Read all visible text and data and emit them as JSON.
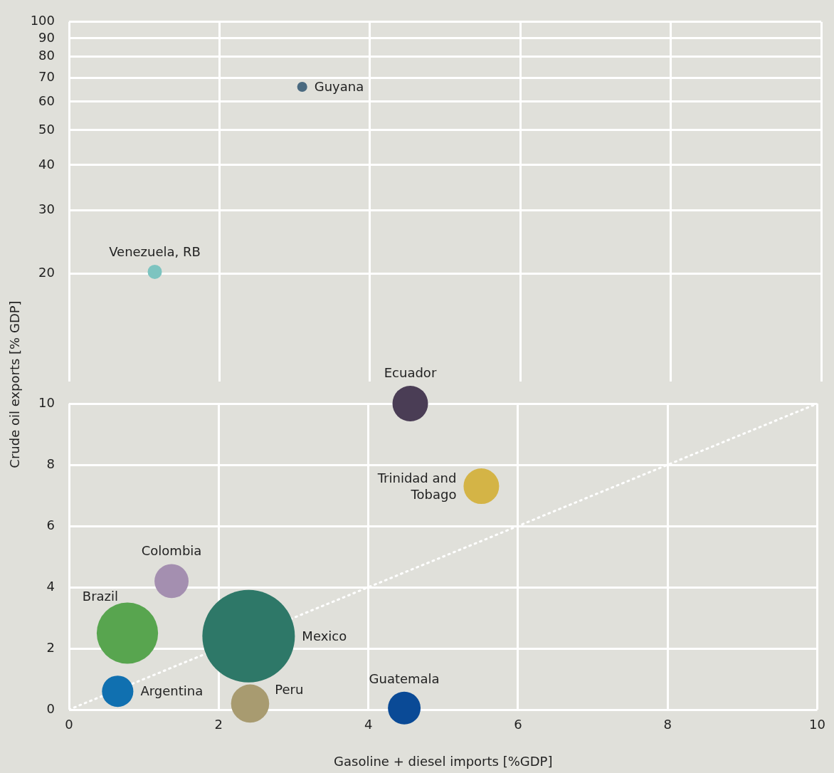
{
  "chart_data": [
    {
      "type": "bubble",
      "xlim": [
        0,
        10
      ],
      "xticks": [
        0,
        2,
        4,
        6,
        8,
        10
      ],
      "ylim": [
        10,
        100
      ],
      "yticks": [
        20,
        30,
        40,
        50,
        60,
        70,
        80,
        90,
        100
      ],
      "log": "y",
      "grid": true,
      "tick_labels": "y",
      "legend": false,
      "series": [
        {
          "name": "Guyana",
          "color": "#4a6a80",
          "x": [
            3.1
          ],
          "values": [
            66
          ],
          "sizes": [
            0.5
          ]
        },
        {
          "name": "Venezuela, RB",
          "color": "#7dc4c0",
          "x": [
            1.14
          ],
          "values": [
            20.2
          ],
          "sizes": [
            1
          ]
        }
      ]
    },
    {
      "type": "bubble",
      "xlabel": "Gasoline + diesel imports [%GDP]",
      "ylabel": "Crude oil exports [% GDP]",
      "xlim": [
        0,
        10
      ],
      "xticks": [
        0,
        2,
        4,
        6,
        8,
        10
      ],
      "ylim": [
        0,
        10
      ],
      "yticks": [
        0,
        2,
        4,
        6,
        8,
        10
      ],
      "grid": true,
      "legend": false,
      "series": [
        {
          "name": "Ecuador",
          "color": "#4a3d55",
          "x": [
            4.56
          ],
          "values": [
            10
          ],
          "sizes": [
            0.148
          ]
        },
        {
          "name": "Trinidad and Tobago",
          "color": "#d4b446",
          "x": [
            5.51
          ],
          "values": [
            7.3
          ],
          "sizes": [
            0.148
          ]
        },
        {
          "name": "Colombia",
          "color": "#a48fb0",
          "x": [
            1.37
          ],
          "values": [
            4.2
          ],
          "sizes": [
            0.136
          ]
        },
        {
          "name": "Brazil",
          "color": "#58a54f",
          "x": [
            0.78
          ],
          "values": [
            2.5
          ],
          "sizes": [
            0.44
          ]
        },
        {
          "name": "Mexico",
          "color": "#2e7868",
          "x": [
            2.4
          ],
          "values": [
            2.4
          ],
          "sizes": [
            1
          ]
        },
        {
          "name": "Argentina",
          "color": "#1070b0",
          "x": [
            0.65
          ],
          "values": [
            0.6
          ],
          "sizes": [
            0.115
          ]
        },
        {
          "name": "Peru",
          "color": "#a89b70",
          "x": [
            2.42
          ],
          "values": [
            0.2
          ],
          "sizes": [
            0.17
          ]
        },
        {
          "name": "Guatemala",
          "color": "#0a4a96",
          "x": [
            4.48
          ],
          "values": [
            0.05
          ],
          "sizes": [
            0.125
          ]
        },
        {
          "type": "line",
          "color": "#ffffff",
          "line_style": "dotted",
          "marker": "none",
          "x": [
            0,
            10
          ],
          "values": [
            0,
            10
          ]
        }
      ]
    }
  ]
}
